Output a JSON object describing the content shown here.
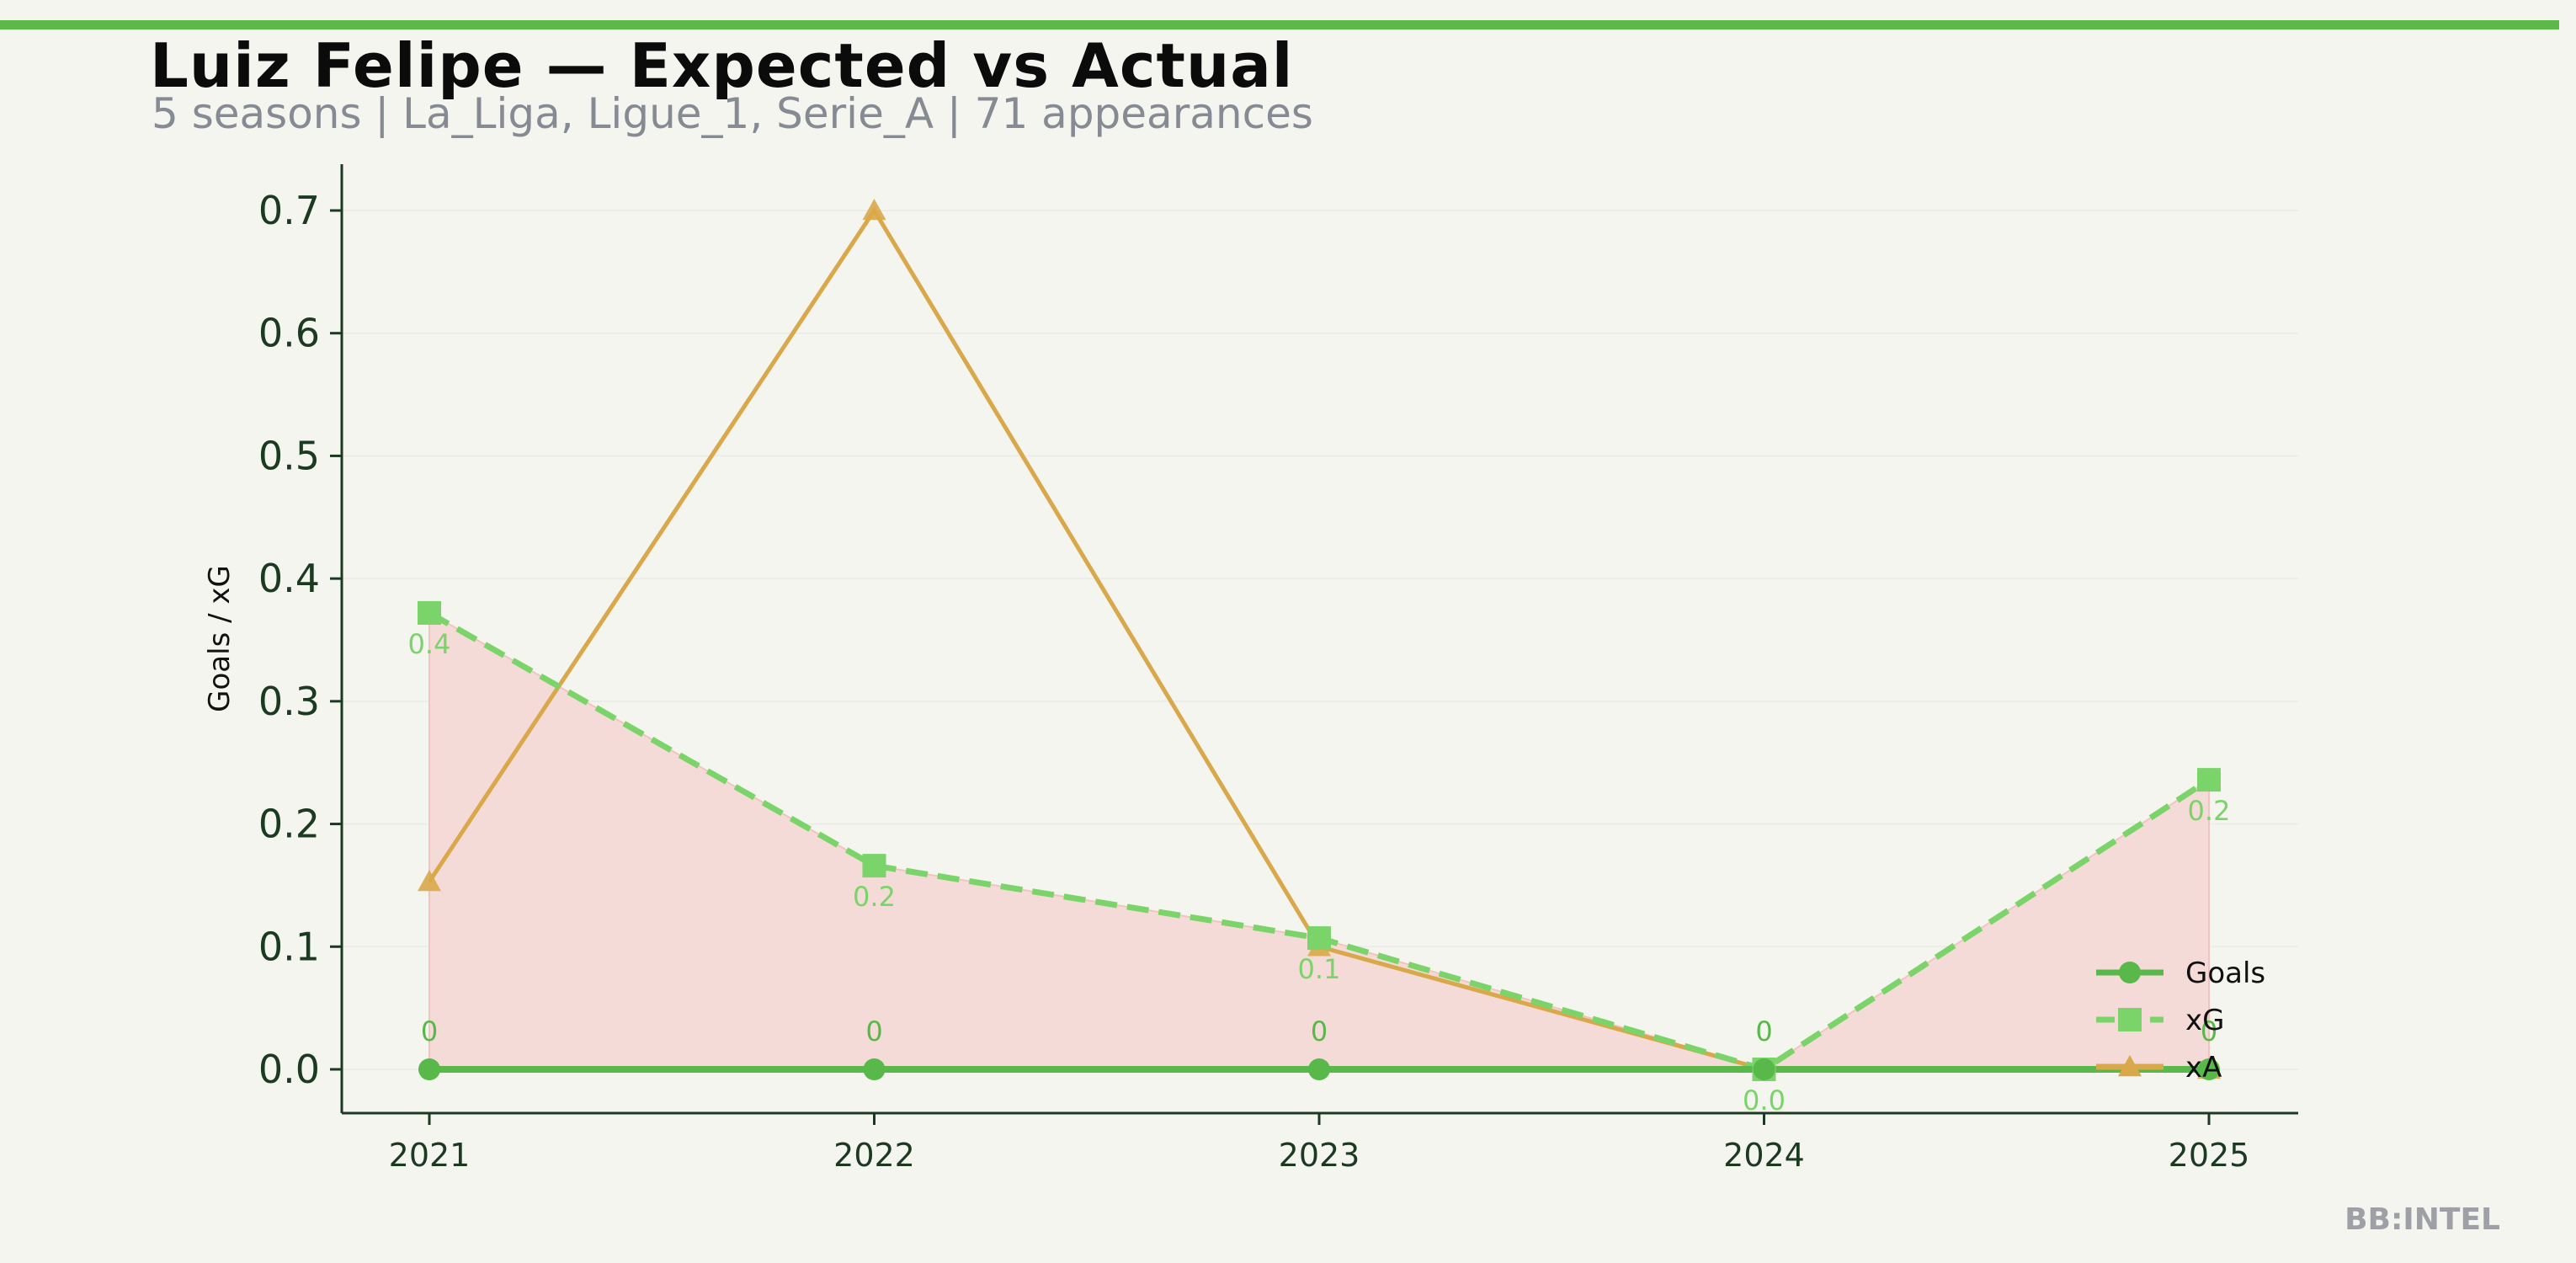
{
  "header": {
    "title": "Luiz Felipe — Expected vs Actual",
    "subtitle": "5 seasons | La_Liga, Ligue_1, Serie_A | 71 appearances",
    "brand": "BB:INTEL"
  },
  "colors": {
    "accent": "#5cb849",
    "goals": "#58b84a",
    "xg": "#7ad46a",
    "xa": "#d9a84a",
    "fill": "#f6dad6",
    "axis": "#1b3a21",
    "background": "#f4f5ef"
  },
  "chart_data": {
    "type": "line",
    "x": [
      "2021",
      "2022",
      "2023",
      "2024",
      "2025"
    ],
    "ylabel": "Goals / xG",
    "xlabel": "",
    "ylim": [
      -0.035,
      0.74
    ],
    "yticks": [
      "0.0",
      "0.1",
      "0.2",
      "0.3",
      "0.4",
      "0.5",
      "0.6",
      "0.7"
    ],
    "ytick_values": [
      0.0,
      0.1,
      0.2,
      0.3,
      0.4,
      0.5,
      0.6,
      0.7
    ],
    "legend_placement": "bottom-right",
    "shaded_area": "between Goals and xG",
    "series": [
      {
        "name": "Goals",
        "values": [
          0,
          0,
          0,
          0,
          0
        ],
        "labels": [
          "0",
          "0",
          "0",
          "0",
          "0"
        ],
        "marker": "circle",
        "style": "solid"
      },
      {
        "name": "xG",
        "values": [
          0.372,
          0.166,
          0.107,
          0.0,
          0.236
        ],
        "labels": [
          "0.4",
          "0.2",
          "0.1",
          "0.0",
          "0.2"
        ],
        "marker": "square",
        "style": "dashed"
      },
      {
        "name": "xA",
        "values": [
          0.153,
          0.7,
          0.1,
          0.0,
          0.0
        ],
        "marker": "triangle",
        "style": "solid"
      }
    ]
  }
}
